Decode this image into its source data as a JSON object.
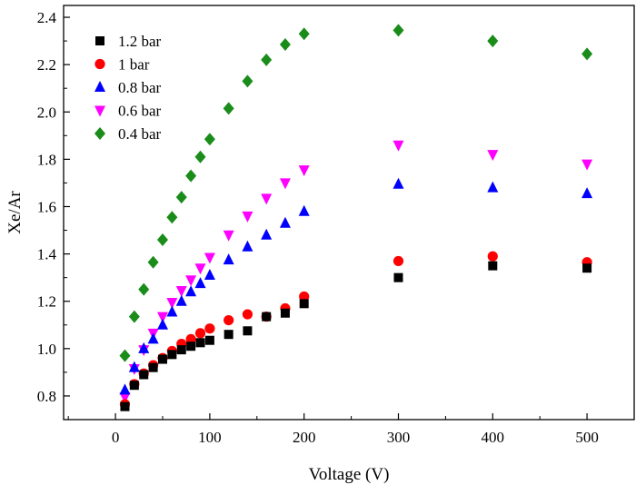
{
  "chart_data": {
    "type": "scatter",
    "title": "",
    "xlabel": "Voltage (V)",
    "ylabel": "Xe/Ar",
    "xlim": [
      -55,
      550
    ],
    "ylim": [
      0.7,
      2.45
    ],
    "xticks": [
      0,
      100,
      200,
      300,
      400,
      500
    ],
    "yticks": [
      0.8,
      1.0,
      1.2,
      1.4,
      1.6,
      1.8,
      2.0,
      2.2,
      2.4
    ],
    "xtick_labels": [
      "0",
      "100",
      "200",
      "300",
      "400",
      "500"
    ],
    "ytick_labels": [
      "0.8",
      "1.0",
      "1.2",
      "1.4",
      "1.6",
      "1.8",
      "2.0",
      "2.2",
      "2.4"
    ],
    "grid": false,
    "legend_position": "top-left",
    "x": [
      10,
      20,
      30,
      40,
      50,
      60,
      70,
      80,
      90,
      100,
      120,
      140,
      160,
      180,
      200,
      300,
      400,
      500
    ],
    "series": [
      {
        "name": "1.2 bar",
        "marker": "square",
        "color": "#000000",
        "values": [
          0.755,
          0.845,
          0.89,
          0.92,
          0.955,
          0.975,
          0.995,
          1.01,
          1.025,
          1.035,
          1.06,
          1.075,
          1.135,
          1.15,
          1.19,
          1.3,
          1.35,
          1.34
        ]
      },
      {
        "name": "1 bar",
        "marker": "circle",
        "color": "#ff0000",
        "values": [
          0.765,
          0.85,
          0.895,
          0.93,
          0.96,
          0.99,
          1.02,
          1.04,
          1.065,
          1.085,
          1.12,
          1.145,
          1.135,
          1.17,
          1.22,
          1.37,
          1.39,
          1.365
        ]
      },
      {
        "name": "0.8 bar",
        "marker": "triangle-up",
        "color": "#0000ff",
        "values": [
          0.825,
          0.92,
          1.0,
          1.04,
          1.1,
          1.155,
          1.2,
          1.24,
          1.275,
          1.31,
          1.375,
          1.43,
          1.48,
          1.53,
          1.58,
          1.695,
          1.68,
          1.655
        ]
      },
      {
        "name": "0.6 bar",
        "marker": "triangle-down",
        "color": "#ff00ff",
        "values": [
          0.795,
          0.915,
          0.995,
          1.065,
          1.135,
          1.195,
          1.245,
          1.29,
          1.34,
          1.385,
          1.48,
          1.56,
          1.635,
          1.7,
          1.755,
          1.86,
          1.82,
          1.78
        ]
      },
      {
        "name": "0.4 bar",
        "marker": "diamond",
        "color": "#1a8c1a",
        "values": [
          0.97,
          1.135,
          1.25,
          1.365,
          1.46,
          1.555,
          1.64,
          1.73,
          1.81,
          1.885,
          2.015,
          2.13,
          2.22,
          2.285,
          2.33,
          2.345,
          2.3,
          2.245
        ]
      }
    ]
  }
}
